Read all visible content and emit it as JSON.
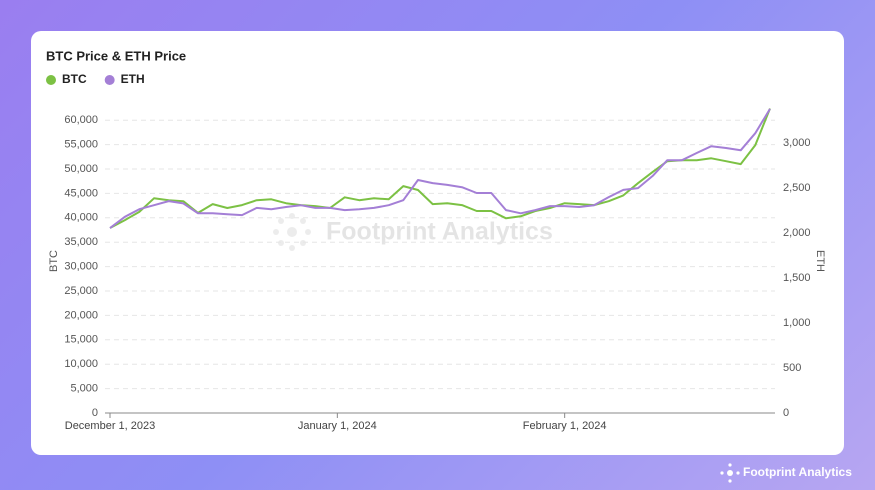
{
  "chart_data": {
    "type": "line",
    "title": "BTC Price & ETH Price",
    "x": [
      "2023-12-01",
      "2023-12-03",
      "2023-12-05",
      "2023-12-07",
      "2023-12-09",
      "2023-12-11",
      "2023-12-13",
      "2023-12-15",
      "2023-12-17",
      "2023-12-19",
      "2023-12-21",
      "2023-12-23",
      "2023-12-25",
      "2023-12-27",
      "2023-12-29",
      "2023-12-31",
      "2024-01-02",
      "2024-01-04",
      "2024-01-06",
      "2024-01-08",
      "2024-01-10",
      "2024-01-12",
      "2024-01-14",
      "2024-01-16",
      "2024-01-18",
      "2024-01-20",
      "2024-01-22",
      "2024-01-24",
      "2024-01-26",
      "2024-01-28",
      "2024-01-30",
      "2024-02-01",
      "2024-02-03",
      "2024-02-05",
      "2024-02-07",
      "2024-02-09",
      "2024-02-11",
      "2024-02-13",
      "2024-02-15",
      "2024-02-17",
      "2024-02-19",
      "2024-02-21",
      "2024-02-23",
      "2024-02-25",
      "2024-02-27",
      "2024-02-29"
    ],
    "series": [
      {
        "name": "BTC",
        "color": "#7cc144",
        "axis": "y",
        "values": [
          37900,
          39500,
          41200,
          44000,
          43600,
          43400,
          41000,
          42800,
          42000,
          42600,
          43600,
          43800,
          43000,
          42600,
          42400,
          42000,
          44200,
          43600,
          44000,
          43800,
          46500,
          45700,
          42800,
          43000,
          42600,
          41400,
          41400,
          39900,
          40300,
          41400,
          42000,
          43000,
          42800,
          42600,
          43400,
          44600,
          47100,
          49400,
          51600,
          51800,
          51800,
          52200,
          51600,
          51000,
          54900,
          62400
        ]
      },
      {
        "name": "ETH",
        "color": "#a47fd6",
        "axis": "y2",
        "values": [
          2055,
          2180,
          2265,
          2310,
          2355,
          2330,
          2220,
          2220,
          2210,
          2200,
          2280,
          2265,
          2290,
          2310,
          2280,
          2280,
          2255,
          2265,
          2280,
          2310,
          2365,
          2590,
          2555,
          2535,
          2510,
          2445,
          2445,
          2255,
          2220,
          2255,
          2300,
          2300,
          2290,
          2310,
          2400,
          2480,
          2500,
          2635,
          2810,
          2810,
          2890,
          2965,
          2945,
          2920,
          3110,
          3380
        ]
      }
    ],
    "xlim": [
      "2023-12-01",
      "2024-02-29"
    ],
    "xticks": [
      {
        "value": "2023-12-01",
        "label": "December 1, 2023"
      },
      {
        "value": "2024-01-01",
        "label": "January 1, 2024"
      },
      {
        "value": "2024-02-01",
        "label": "February 1, 2024"
      }
    ],
    "ylabel": "BTC",
    "y2label": "ETH",
    "ylim": [
      0,
      62500
    ],
    "yticks": [
      0,
      {
        "value": 5000,
        "label": "5,000"
      },
      {
        "value": 10000,
        "label": "10,000"
      },
      {
        "value": 15000,
        "label": "15,000"
      },
      {
        "value": 20000,
        "label": "20,000"
      },
      {
        "value": 25000,
        "label": "25,000"
      },
      {
        "value": 30000,
        "label": "30,000"
      },
      {
        "value": 35000,
        "label": "35,000"
      },
      {
        "value": 40000,
        "label": "40,000"
      },
      {
        "value": 45000,
        "label": "45,000"
      },
      {
        "value": 50000,
        "label": "50,000"
      },
      {
        "value": 55000,
        "label": "55,000"
      },
      {
        "value": 60000,
        "label": "60,000"
      }
    ],
    "y2lim": [
      0,
      3390
    ],
    "y2ticks": [
      0,
      500,
      {
        "value": 1000,
        "label": "1,000"
      },
      {
        "value": 1500,
        "label": "1,500"
      },
      {
        "value": 2000,
        "label": "2,000"
      },
      {
        "value": 2500,
        "label": "2,500"
      },
      {
        "value": 3000,
        "label": "3,000"
      }
    ],
    "grid": true,
    "legend": "top-left",
    "watermark": "Footprint Analytics"
  },
  "footer": {
    "brand": "Footprint Analytics"
  }
}
